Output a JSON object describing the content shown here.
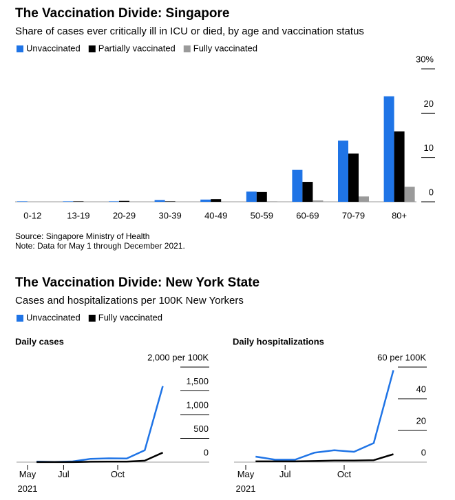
{
  "chart_data": [
    {
      "type": "bar",
      "title": "The Vaccination Divide: Singapore",
      "subtitle": "Share of cases ever critically ill in ICU or died, by age and vaccination status",
      "categories": [
        "0-12",
        "13-19",
        "20-29",
        "30-39",
        "40-49",
        "50-59",
        "60-69",
        "70-79",
        "80+"
      ],
      "series": [
        {
          "name": "Unvaccinated",
          "color": "#1f74e6",
          "values": [
            0.1,
            0.1,
            0.1,
            0.4,
            0.5,
            2.3,
            7.2,
            13.8,
            23.8
          ]
        },
        {
          "name": "Partially vaccinated",
          "color": "#000000",
          "values": [
            0,
            0.1,
            0.2,
            0.1,
            0.6,
            2.2,
            4.5,
            10.9,
            15.9
          ]
        },
        {
          "name": "Fully vaccinated",
          "color": "#9a9a9a",
          "values": [
            0,
            0,
            0,
            0,
            0,
            0.1,
            0.3,
            1.2,
            3.4
          ]
        }
      ],
      "ylim": [
        0,
        30
      ],
      "yticks": [
        0,
        10,
        20,
        {
          "value": 30,
          "label": "30%"
        }
      ],
      "legend": "top-left",
      "source": "Source: Singapore Ministry of Health",
      "note": "Note: Data for May 1 through December 2021."
    },
    {
      "type": "line",
      "title": "The Vaccination Divide: New York State",
      "subtitle": "Cases and hospitalizations per 100K New Yorkers",
      "panel_title": "Daily cases",
      "x": [
        "2021-05",
        "2021-06",
        "2021-07",
        "2021-08",
        "2021-09",
        "2021-10",
        "2021-11",
        "2021-12"
      ],
      "xticks": [
        {
          "value": "2021-05",
          "label": "May 2021"
        },
        {
          "value": "2021-07",
          "label": "Jul"
        },
        {
          "value": "2021-10",
          "label": "Oct"
        }
      ],
      "series": [
        {
          "name": "Unvaccinated",
          "color": "#1f74e6",
          "values": [
            10,
            5,
            15,
            70,
            80,
            75,
            250,
            1600
          ]
        },
        {
          "name": "Fully vaccinated",
          "color": "#000000",
          "values": [
            2,
            1,
            2,
            8,
            10,
            10,
            30,
            200
          ]
        }
      ],
      "ylim": [
        0,
        2000
      ],
      "yticks": [
        0,
        500,
        {
          "value": 1000,
          "label": "1,000"
        },
        {
          "value": 1500,
          "label": "1,500"
        },
        {
          "value": 2000,
          "label": "2,000 per 100K"
        }
      ],
      "legend": "top-left"
    },
    {
      "type": "line",
      "panel_title": "Daily hospitalizations",
      "x": [
        "2021-05",
        "2021-06",
        "2021-07",
        "2021-08",
        "2021-09",
        "2021-10",
        "2021-11",
        "2021-12"
      ],
      "xticks": [
        {
          "value": "2021-05",
          "label": "May 2021"
        },
        {
          "value": "2021-07",
          "label": "Jul"
        },
        {
          "value": "2021-10",
          "label": "Oct"
        }
      ],
      "series": [
        {
          "color": "#1f74e6",
          "values": [
            3.5,
            1.5,
            1.5,
            6,
            7.5,
            6.5,
            12,
            58
          ]
        },
        {
          "color": "#000000",
          "values": [
            0.5,
            0.5,
            0.5,
            0.7,
            1,
            1,
            1.2,
            5
          ]
        }
      ],
      "ylim": [
        0,
        60
      ],
      "yticks": [
        0,
        20,
        40,
        {
          "value": 60,
          "label": "60 per 100K"
        }
      ]
    }
  ]
}
